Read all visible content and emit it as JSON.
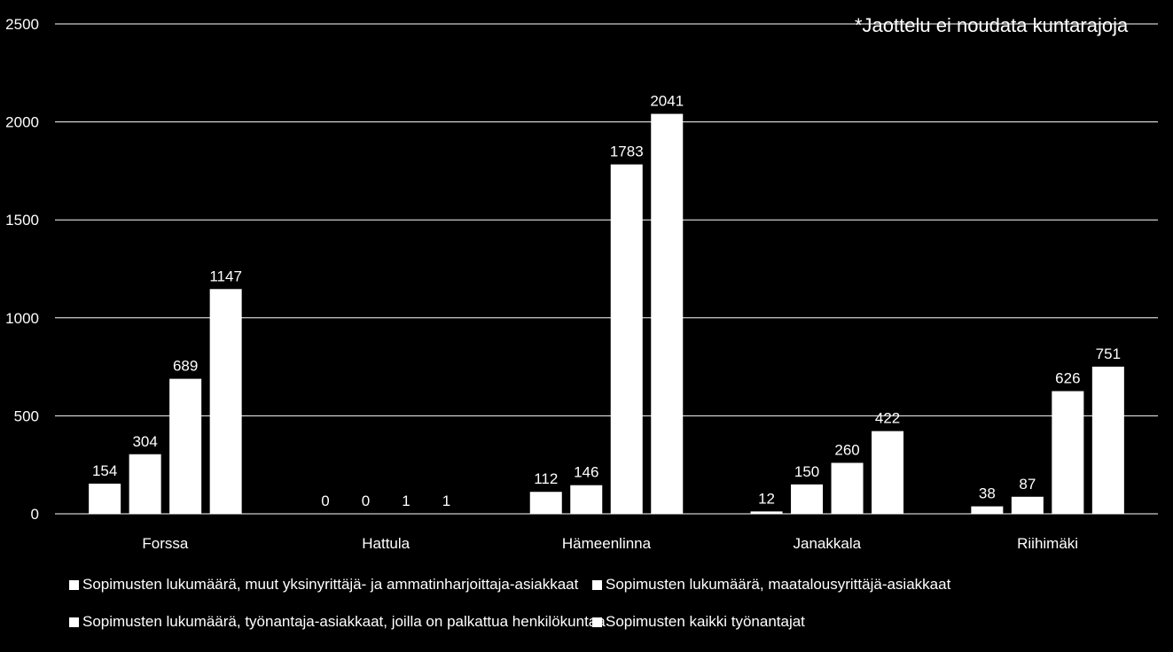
{
  "chart_data": {
    "type": "bar",
    "annotation": "*Jaottelu ei noudata kuntarajoja",
    "categories": [
      "Forssa",
      "Hattula",
      "Hämeenlinna",
      "Janakkala",
      "Riihimäki"
    ],
    "series": [
      {
        "name": "Sopimusten lukumäärä, muut yksinyrittäjä- ja ammatinharjoittaja-asiakkaat",
        "values": [
          154,
          0,
          112,
          12,
          38
        ]
      },
      {
        "name": "Sopimusten lukumäärä, maatalousyrittäjä-asiakkaat",
        "values": [
          304,
          0,
          146,
          150,
          87
        ]
      },
      {
        "name": "Sopimusten lukumäärä, työnantaja-asiakkaat, joilla on palkattua henkilökuntaa",
        "values": [
          689,
          1,
          1783,
          260,
          626
        ]
      },
      {
        "name": "Sopimusten kaikki työnantajat",
        "values": [
          1147,
          1,
          2041,
          422,
          751
        ]
      }
    ],
    "ylim": [
      0,
      2500
    ],
    "yticks": [
      0,
      500,
      1000,
      1500,
      2000,
      2500
    ],
    "grid": true,
    "legend_position": "bottom",
    "colors": {
      "background": "#000000",
      "bars": "#ffffff",
      "grid": "#ffffff",
      "text": "#ffffff"
    }
  }
}
